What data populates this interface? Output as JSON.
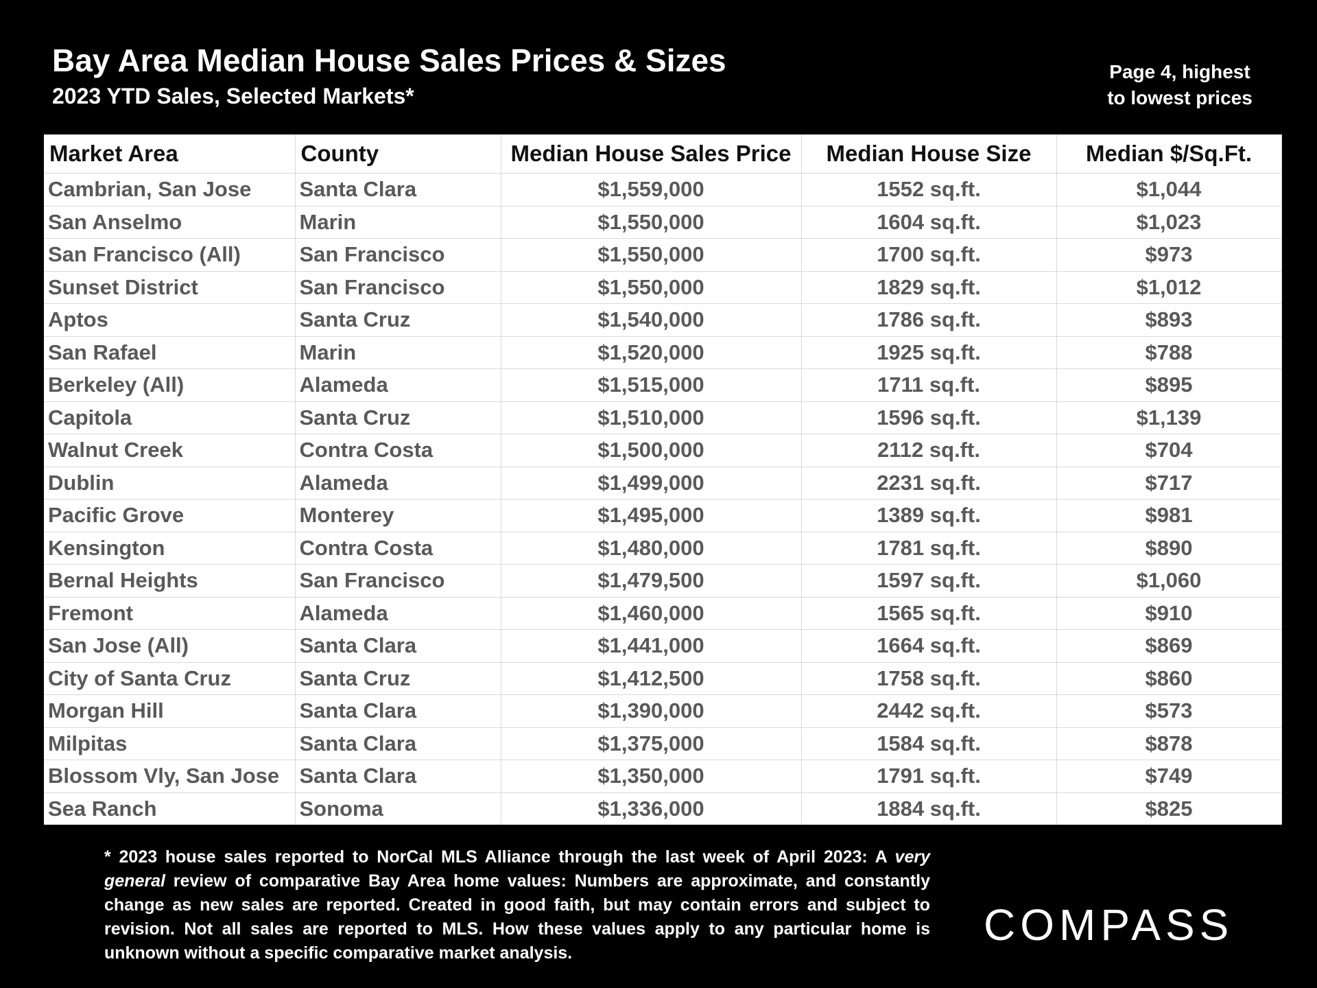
{
  "header": {
    "title": "Bay Area Median House Sales Prices & Sizes",
    "subtitle": "2023 YTD Sales, Selected Markets*",
    "page_note_line1": "Page 4, highest",
    "page_note_line2": "to lowest prices"
  },
  "chart_data": {
    "type": "table",
    "title": "Bay Area Median House Sales Prices & Sizes",
    "subtitle": "2023 YTD Sales, Selected Markets*",
    "columns": [
      "Market Area",
      "County",
      "Median House Sales Price",
      "Median House Size",
      "Median $/Sq.Ft."
    ],
    "rows": [
      [
        "Cambrian, San Jose",
        "Santa Clara",
        "$1,559,000",
        "1552 sq.ft.",
        "$1,044"
      ],
      [
        "San Anselmo",
        "Marin",
        "$1,550,000",
        "1604 sq.ft.",
        "$1,023"
      ],
      [
        "San Francisco (All)",
        "San Francisco",
        "$1,550,000",
        "1700 sq.ft.",
        "$973"
      ],
      [
        "Sunset District",
        "San Francisco",
        "$1,550,000",
        "1829 sq.ft.",
        "$1,012"
      ],
      [
        "Aptos",
        "Santa Cruz",
        "$1,540,000",
        "1786 sq.ft.",
        "$893"
      ],
      [
        "San Rafael",
        "Marin",
        "$1,520,000",
        "1925 sq.ft.",
        "$788"
      ],
      [
        "Berkeley (All)",
        "Alameda",
        "$1,515,000",
        "1711 sq.ft.",
        "$895"
      ],
      [
        "Capitola",
        "Santa Cruz",
        "$1,510,000",
        "1596 sq.ft.",
        "$1,139"
      ],
      [
        "Walnut Creek",
        "Contra Costa",
        "$1,500,000",
        "2112 sq.ft.",
        "$704"
      ],
      [
        "Dublin",
        "Alameda",
        "$1,499,000",
        "2231 sq.ft.",
        "$717"
      ],
      [
        "Pacific Grove",
        "Monterey",
        "$1,495,000",
        "1389 sq.ft.",
        "$981"
      ],
      [
        "Kensington",
        "Contra Costa",
        "$1,480,000",
        "1781 sq.ft.",
        "$890"
      ],
      [
        "Bernal Heights",
        "San Francisco",
        "$1,479,500",
        "1597 sq.ft.",
        "$1,060"
      ],
      [
        "Fremont",
        "Alameda",
        "$1,460,000",
        "1565 sq.ft.",
        "$910"
      ],
      [
        "San Jose (All)",
        "Santa Clara",
        "$1,441,000",
        "1664 sq.ft.",
        "$869"
      ],
      [
        "City of Santa Cruz",
        "Santa Cruz",
        "$1,412,500",
        "1758 sq.ft.",
        "$860"
      ],
      [
        "Morgan Hill",
        "Santa Clara",
        "$1,390,000",
        "2442 sq.ft.",
        "$573"
      ],
      [
        "Milpitas",
        "Santa Clara",
        "$1,375,000",
        "1584 sq.ft.",
        "$878"
      ],
      [
        "Blossom Vly, San Jose",
        "Santa Clara",
        "$1,350,000",
        "1791 sq.ft.",
        "$749"
      ],
      [
        "Sea Ranch",
        "Sonoma",
        "$1,336,000",
        "1884 sq.ft.",
        "$825"
      ]
    ]
  },
  "footnote": {
    "part1": "* 2023 house sales reported to NorCal MLS Alliance through the last week of April 2023: A ",
    "emphasis": "very general",
    "part2": " review of comparative Bay Area home values:  Numbers are approximate, and constantly change as new sales are reported. Created in good faith, but may contain errors and subject to revision. Not all sales are reported to MLS. How these values apply to any particular home is unknown without a specific comparative market analysis."
  },
  "logo": {
    "text": "COMPASS"
  },
  "colors": {
    "background": "#000000",
    "table_background": "#ffffff",
    "table_text": "#595959",
    "header_text": "#111111",
    "grid": "#d9d9d9"
  }
}
